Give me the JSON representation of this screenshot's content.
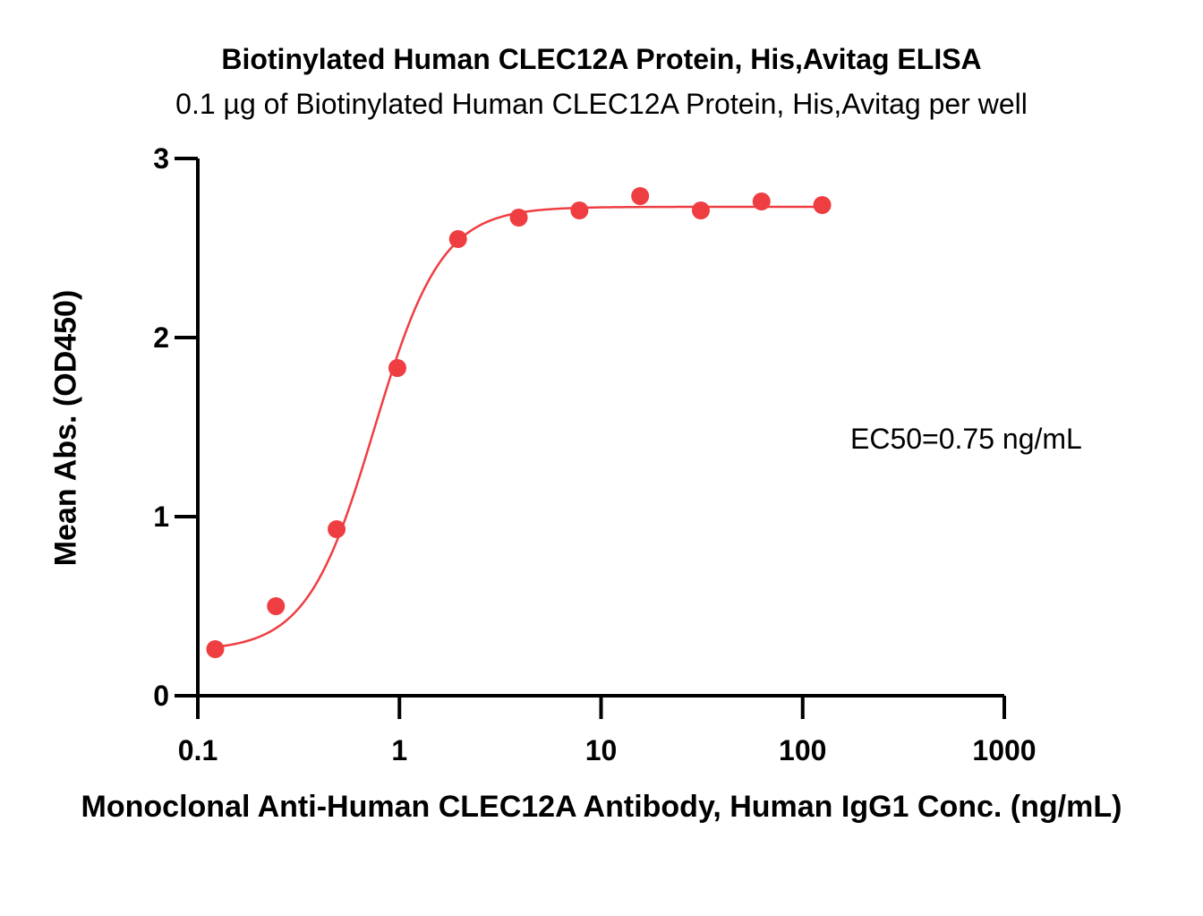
{
  "chart_data": {
    "type": "scatter",
    "title": "Biotinylated Human CLEC12A Protein, His,Avitag ELISA",
    "subtitle": "0.1 µg of Biotinylated Human CLEC12A Protein, His,Avitag per well",
    "xlabel": "Monoclonal Anti-Human CLEC12A Antibody, Human IgG1 Conc. (ng/mL)",
    "ylabel": "Mean Abs. (OD450)",
    "x_scale": "log",
    "xlim": [
      0.1,
      1000
    ],
    "ylim": [
      0,
      3
    ],
    "x_ticks": [
      "0.1",
      "1",
      "10",
      "100",
      "1000"
    ],
    "y_ticks": [
      "0",
      "1",
      "2",
      "3"
    ],
    "annotation": "EC50=0.75 ng/mL",
    "color": "#ef3e42",
    "grid": false,
    "series": [
      {
        "x": [
          0.122,
          0.244,
          0.488,
          0.977,
          1.953,
          3.906,
          7.813,
          15.625,
          31.25,
          62.5,
          125
        ],
        "y": [
          0.26,
          0.5,
          0.93,
          1.83,
          2.55,
          2.67,
          2.71,
          2.79,
          2.71,
          2.76,
          2.74
        ]
      }
    ],
    "fit_curve": {
      "model": "4PL",
      "bottom": 0.25,
      "top": 2.73,
      "ec50": 0.75,
      "hill": 2.6
    }
  }
}
